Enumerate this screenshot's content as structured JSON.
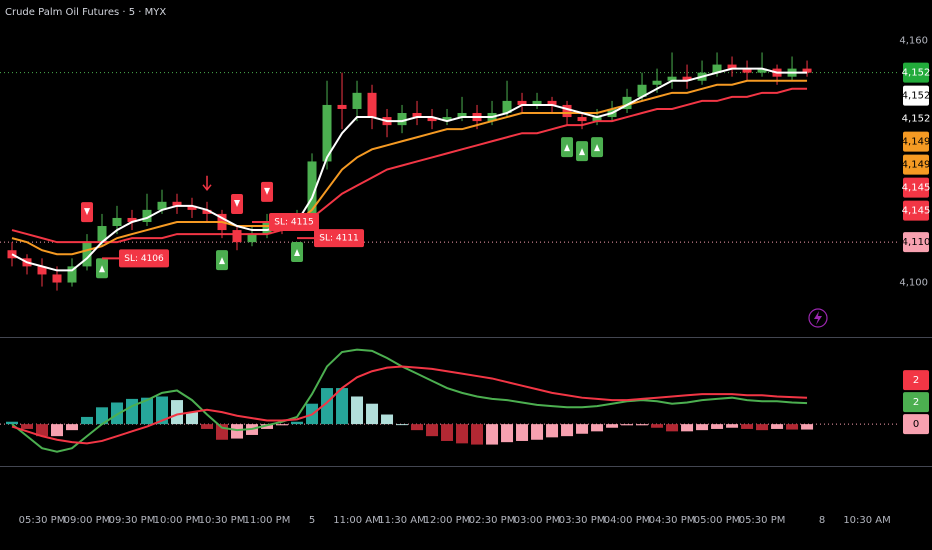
{
  "chart_data": [
    {
      "type": "candlestick",
      "title": "Crude Palm Oil Futures · 5 · MYX",
      "x": [
        0,
        1,
        2,
        3,
        4,
        5,
        6,
        7,
        8,
        9,
        10,
        11,
        12,
        13,
        14,
        15,
        16,
        17,
        18,
        19,
        20,
        21,
        22,
        23,
        24,
        25,
        26,
        27,
        28,
        29,
        30,
        31,
        32,
        33,
        34,
        35,
        36,
        37,
        38,
        39,
        40,
        41,
        42,
        43,
        44,
        45,
        46,
        47,
        48,
        49,
        50,
        51,
        52,
        53
      ],
      "open": [
        4108,
        4106,
        4104,
        4102,
        4100,
        4104,
        4110,
        4114,
        4116,
        4115,
        4118,
        4120,
        4119,
        4118,
        4117,
        4113,
        4110,
        4112,
        4115,
        4114,
        4116,
        4130,
        4144,
        4143,
        4147,
        4141,
        4139,
        4142,
        4141,
        4140,
        4141,
        4142,
        4140,
        4142,
        4145,
        4144,
        4145,
        4144,
        4141,
        4140,
        4141,
        4143,
        4146,
        4149,
        4150,
        4151,
        4150,
        4152,
        4154,
        4153,
        4152,
        4153,
        4151,
        4153
      ],
      "high": [
        4110,
        4107,
        4106,
        4104,
        4106,
        4112,
        4117,
        4119,
        4118,
        4122,
        4123,
        4122,
        4121,
        4120,
        4118,
        4114,
        4114,
        4117,
        4116,
        4118,
        4132,
        4150,
        4152,
        4150,
        4149,
        4143,
        4144,
        4145,
        4143,
        4143,
        4146,
        4144,
        4145,
        4150,
        4147,
        4147,
        4146,
        4145,
        4142,
        4143,
        4145,
        4148,
        4152,
        4153,
        4157,
        4154,
        4155,
        4157,
        4156,
        4155,
        4157,
        4154,
        4156,
        4155
      ],
      "low": [
        4104,
        4102,
        4099,
        4098,
        4099,
        4103,
        4109,
        4112,
        4113,
        4114,
        4117,
        4117,
        4116,
        4115,
        4111,
        4108,
        4109,
        4111,
        4112,
        4113,
        4115,
        4128,
        4138,
        4140,
        4138,
        4136,
        4137,
        4139,
        4138,
        4139,
        4140,
        4138,
        4139,
        4141,
        4142,
        4143,
        4142,
        4139,
        4138,
        4139,
        4140,
        4142,
        4145,
        4147,
        4148,
        4148,
        4149,
        4151,
        4151,
        4150,
        4151,
        4149,
        4150,
        4151
      ],
      "close": [
        4106,
        4104,
        4102,
        4100,
        4104,
        4110,
        4114,
        4116,
        4115,
        4118,
        4120,
        4119,
        4118,
        4117,
        4113,
        4110,
        4112,
        4115,
        4114,
        4116,
        4130,
        4144,
        4143,
        4147,
        4141,
        4139,
        4142,
        4141,
        4140,
        4141,
        4142,
        4140,
        4142,
        4145,
        4144,
        4145,
        4144,
        4141,
        4140,
        4141,
        4143,
        4146,
        4149,
        4150,
        4151,
        4150,
        4152,
        4154,
        4153,
        4152,
        4153,
        4151,
        4153,
        4152
      ],
      "up_color": "#4caf50",
      "down_color": "#f23645",
      "lines": [
        {
          "color": "#f23645",
          "values": [
            4113,
            4112,
            4111,
            4110,
            4110,
            4110,
            4110,
            4110,
            4111,
            4111,
            4111,
            4112,
            4112,
            4112,
            4112,
            4112,
            4112,
            4112,
            4113,
            4114,
            4116,
            4119,
            4122,
            4124,
            4126,
            4128,
            4129,
            4130,
            4131,
            4132,
            4133,
            4134,
            4135,
            4136,
            4137,
            4137,
            4138,
            4139,
            4139,
            4140,
            4140,
            4141,
            4142,
            4143,
            4143,
            4144,
            4145,
            4145,
            4146,
            4146,
            4147,
            4147,
            4148,
            4148
          ]
        },
        {
          "color": "#f59a23",
          "values": [
            4111,
            4110,
            4108,
            4107,
            4107,
            4108,
            4109,
            4111,
            4112,
            4113,
            4114,
            4115,
            4115,
            4115,
            4115,
            4114,
            4114,
            4114,
            4114,
            4115,
            4118,
            4123,
            4128,
            4131,
            4133,
            4134,
            4135,
            4136,
            4137,
            4138,
            4138,
            4139,
            4140,
            4141,
            4142,
            4142,
            4142,
            4142,
            4142,
            4142,
            4143,
            4144,
            4145,
            4146,
            4147,
            4147,
            4148,
            4149,
            4149,
            4150,
            4150,
            4150,
            4150,
            4150
          ]
        },
        {
          "color": "#ffffff",
          "values": [
            4107,
            4105,
            4104,
            4103,
            4103,
            4106,
            4110,
            4113,
            4115,
            4116,
            4118,
            4119,
            4119,
            4118,
            4116,
            4114,
            4113,
            4113,
            4114,
            4115,
            4121,
            4131,
            4137,
            4141,
            4141,
            4140,
            4140,
            4141,
            4141,
            4140,
            4141,
            4141,
            4141,
            4142,
            4144,
            4144,
            4144,
            4143,
            4142,
            4141,
            4142,
            4144,
            4146,
            4148,
            4150,
            4150,
            4151,
            4152,
            4153,
            4153,
            4153,
            4152,
            4152,
            4152
          ]
        }
      ],
      "xlim": [
        -0.8,
        60.53
      ],
      "ylim": [
        4087,
        4170
      ],
      "yticks": [
        {
          "value": 4100,
          "label": "4,100"
        },
        {
          "value": 4160,
          "label": "4,160"
        }
      ],
      "grid": false,
      "hlines": [
        {
          "value": 4152,
          "color": "#4caf50"
        },
        {
          "value": 4110,
          "color": "#f7a1b0"
        }
      ],
      "price_labels": [
        {
          "value": 4152,
          "label": "4,152",
          "color": "#22ab3b"
        },
        {
          "value": 4152,
          "label": "4,152",
          "color": "#ffffff"
        },
        {
          "value": 4152,
          "label": "4,152",
          "color": "#000000"
        },
        {
          "value": 4149,
          "label": "4,149",
          "color": "#f59a23"
        },
        {
          "value": 4149,
          "label": "4,149",
          "color": "#f59a23"
        },
        {
          "value": 4145,
          "label": "4,145",
          "color": "#f23645"
        },
        {
          "value": 4145,
          "label": "4,145",
          "color": "#f23645"
        },
        {
          "value": 4110,
          "label": "4,110",
          "color": "#f7a1b0"
        }
      ],
      "buy_signals": [
        6,
        14,
        19,
        37,
        38,
        39
      ],
      "sell_signals": [
        5,
        15,
        17
      ],
      "exit_signals": [
        13
      ],
      "stop_losses": [
        {
          "value": 4106,
          "label": "SL: 4106",
          "x": 7
        },
        {
          "value": 4115,
          "label": "SL: 4115",
          "x": 17
        },
        {
          "value": 4111,
          "label": "SL: 4111",
          "x": 20
        }
      ]
    },
    {
      "type": "macd",
      "xlim": [
        -0.8,
        60.53
      ],
      "ylim": [
        -3.4,
        7
      ],
      "xticks": [
        {
          "value": 2,
          "label": "05:30 PM"
        },
        {
          "value": 5,
          "label": "09:00 PM"
        },
        {
          "value": 8,
          "label": "09:30 PM"
        },
        {
          "value": 11,
          "label": "10:00 PM"
        },
        {
          "value": 14,
          "label": "10:30 PM"
        },
        {
          "value": 17,
          "label": "11:00 PM"
        },
        {
          "value": 20,
          "label": "5"
        },
        {
          "value": 23,
          "label": "11:00 AM"
        },
        {
          "value": 26,
          "label": "11:30 AM"
        },
        {
          "value": 29,
          "label": "12:00 PM"
        },
        {
          "value": 32,
          "label": "02:30 PM"
        },
        {
          "value": 35,
          "label": "03:00 PM"
        },
        {
          "value": 38,
          "label": "03:30 PM"
        },
        {
          "value": 41,
          "label": "04:00 PM"
        },
        {
          "value": 44,
          "label": "04:30 PM"
        },
        {
          "value": 47,
          "label": "05:00 PM"
        },
        {
          "value": 50,
          "label": "05:30 PM"
        },
        {
          "value": 54,
          "label": "8"
        },
        {
          "value": 57,
          "label": "10:30 AM"
        }
      ],
      "histogram": {
        "colors": [
          "#26a69a",
          "#b2dfdb",
          "#b22833",
          "#f7a1b0"
        ],
        "values": [
          0.2,
          -0.4,
          -1,
          -1,
          -0.5,
          0.6,
          1.4,
          1.8,
          2.1,
          2.2,
          2.3,
          2,
          1,
          -0.4,
          -1.3,
          -1.2,
          -0.9,
          -0.4,
          -0.1,
          0.2,
          1.7,
          3,
          3,
          2.3,
          1.7,
          0.8,
          0,
          -0.5,
          -1,
          -1.4,
          -1.6,
          -1.7,
          -1.7,
          -1.5,
          -1.4,
          -1.3,
          -1.1,
          -1,
          -0.8,
          -0.6,
          -0.3,
          -0.1,
          -0.1,
          -0.3,
          -0.6,
          -0.6,
          -0.5,
          -0.4,
          -0.3,
          -0.4,
          -0.5,
          -0.4,
          -0.45,
          -0.45
        ]
      },
      "lines": [
        {
          "color": "#4caf50",
          "values": [
            0,
            -1,
            -2,
            -2.3,
            -2,
            -1,
            0,
            0.8,
            1.5,
            2,
            2.6,
            2.8,
            2,
            0.8,
            -0.3,
            -0.5,
            -0.4,
            -0.1,
            0.2,
            0.6,
            2.5,
            4.8,
            6,
            6.2,
            6.1,
            5.5,
            4.8,
            4.2,
            3.6,
            3,
            2.6,
            2.3,
            2.1,
            2,
            1.8,
            1.6,
            1.5,
            1.4,
            1.4,
            1.5,
            1.7,
            1.9,
            2,
            1.9,
            1.7,
            1.8,
            2,
            2.1,
            2.2,
            2,
            1.9,
            1.9,
            1.8,
            1.75
          ]
        },
        {
          "color": "#f23645",
          "values": [
            -0.2,
            -0.6,
            -1,
            -1.3,
            -1.5,
            -1.6,
            -1.4,
            -1,
            -0.6,
            -0.2,
            0.3,
            0.8,
            1,
            1.2,
            1,
            0.7,
            0.5,
            0.3,
            0.3,
            0.4,
            0.8,
            1.8,
            3,
            3.9,
            4.4,
            4.7,
            4.8,
            4.7,
            4.6,
            4.4,
            4.2,
            4,
            3.8,
            3.5,
            3.2,
            2.9,
            2.6,
            2.4,
            2.2,
            2.1,
            2,
            2,
            2.1,
            2.2,
            2.3,
            2.4,
            2.5,
            2.5,
            2.5,
            2.4,
            2.4,
            2.3,
            2.25,
            2.2
          ]
        }
      ],
      "hlines": [
        {
          "value": 0,
          "color": "#f7a1b0"
        }
      ],
      "price_labels": [
        {
          "value": 2.2,
          "label": "2",
          "color": "#f23645"
        },
        {
          "value": 1.75,
          "label": "2",
          "color": "#4caf50"
        },
        {
          "value": 0,
          "label": "0",
          "color": "#f7a1b0"
        }
      ]
    }
  ]
}
